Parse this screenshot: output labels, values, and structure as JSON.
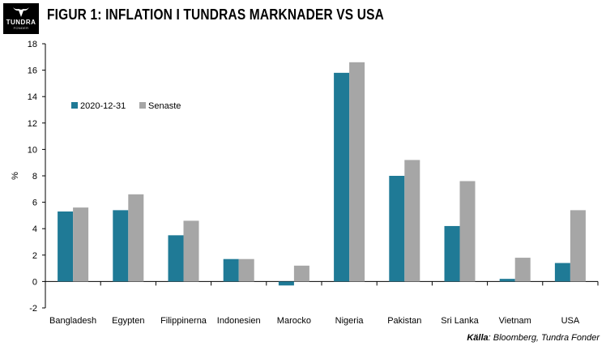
{
  "header": {
    "title": "FIGUR 1: INFLATION I TUNDRAS MARKNADER VS USA",
    "logo_name": "TUNDRA",
    "logo_sub": "FONDER"
  },
  "source": {
    "label": "Källa",
    "text": ": Bloomberg, Tundra Fonder"
  },
  "chart_data": {
    "type": "bar",
    "title": "FIGUR 1: INFLATION I TUNDRAS MARKNADER VS USA",
    "xlabel": "",
    "ylabel": "%",
    "ylim": [
      -2,
      18
    ],
    "yticks": [
      -2,
      0,
      2,
      4,
      6,
      8,
      10,
      12,
      14,
      16,
      18
    ],
    "grid": false,
    "legend_position": "upper-left",
    "categories": [
      "Bangladesh",
      "Egypten",
      "Filippinerna",
      "Indonesien",
      "Marocko",
      "Nigeria",
      "Pakistan",
      "Sri Lanka",
      "Vietnam",
      "USA"
    ],
    "series": [
      {
        "name": "2020-12-31",
        "color": "#1f7a96",
        "values": [
          5.3,
          5.4,
          3.5,
          1.7,
          -0.3,
          15.8,
          8.0,
          4.2,
          0.2,
          1.4
        ]
      },
      {
        "name": "Senaste",
        "color": "#a6a6a6",
        "values": [
          5.6,
          6.6,
          4.6,
          1.7,
          1.2,
          16.6,
          9.2,
          7.6,
          1.8,
          5.4
        ]
      }
    ]
  }
}
